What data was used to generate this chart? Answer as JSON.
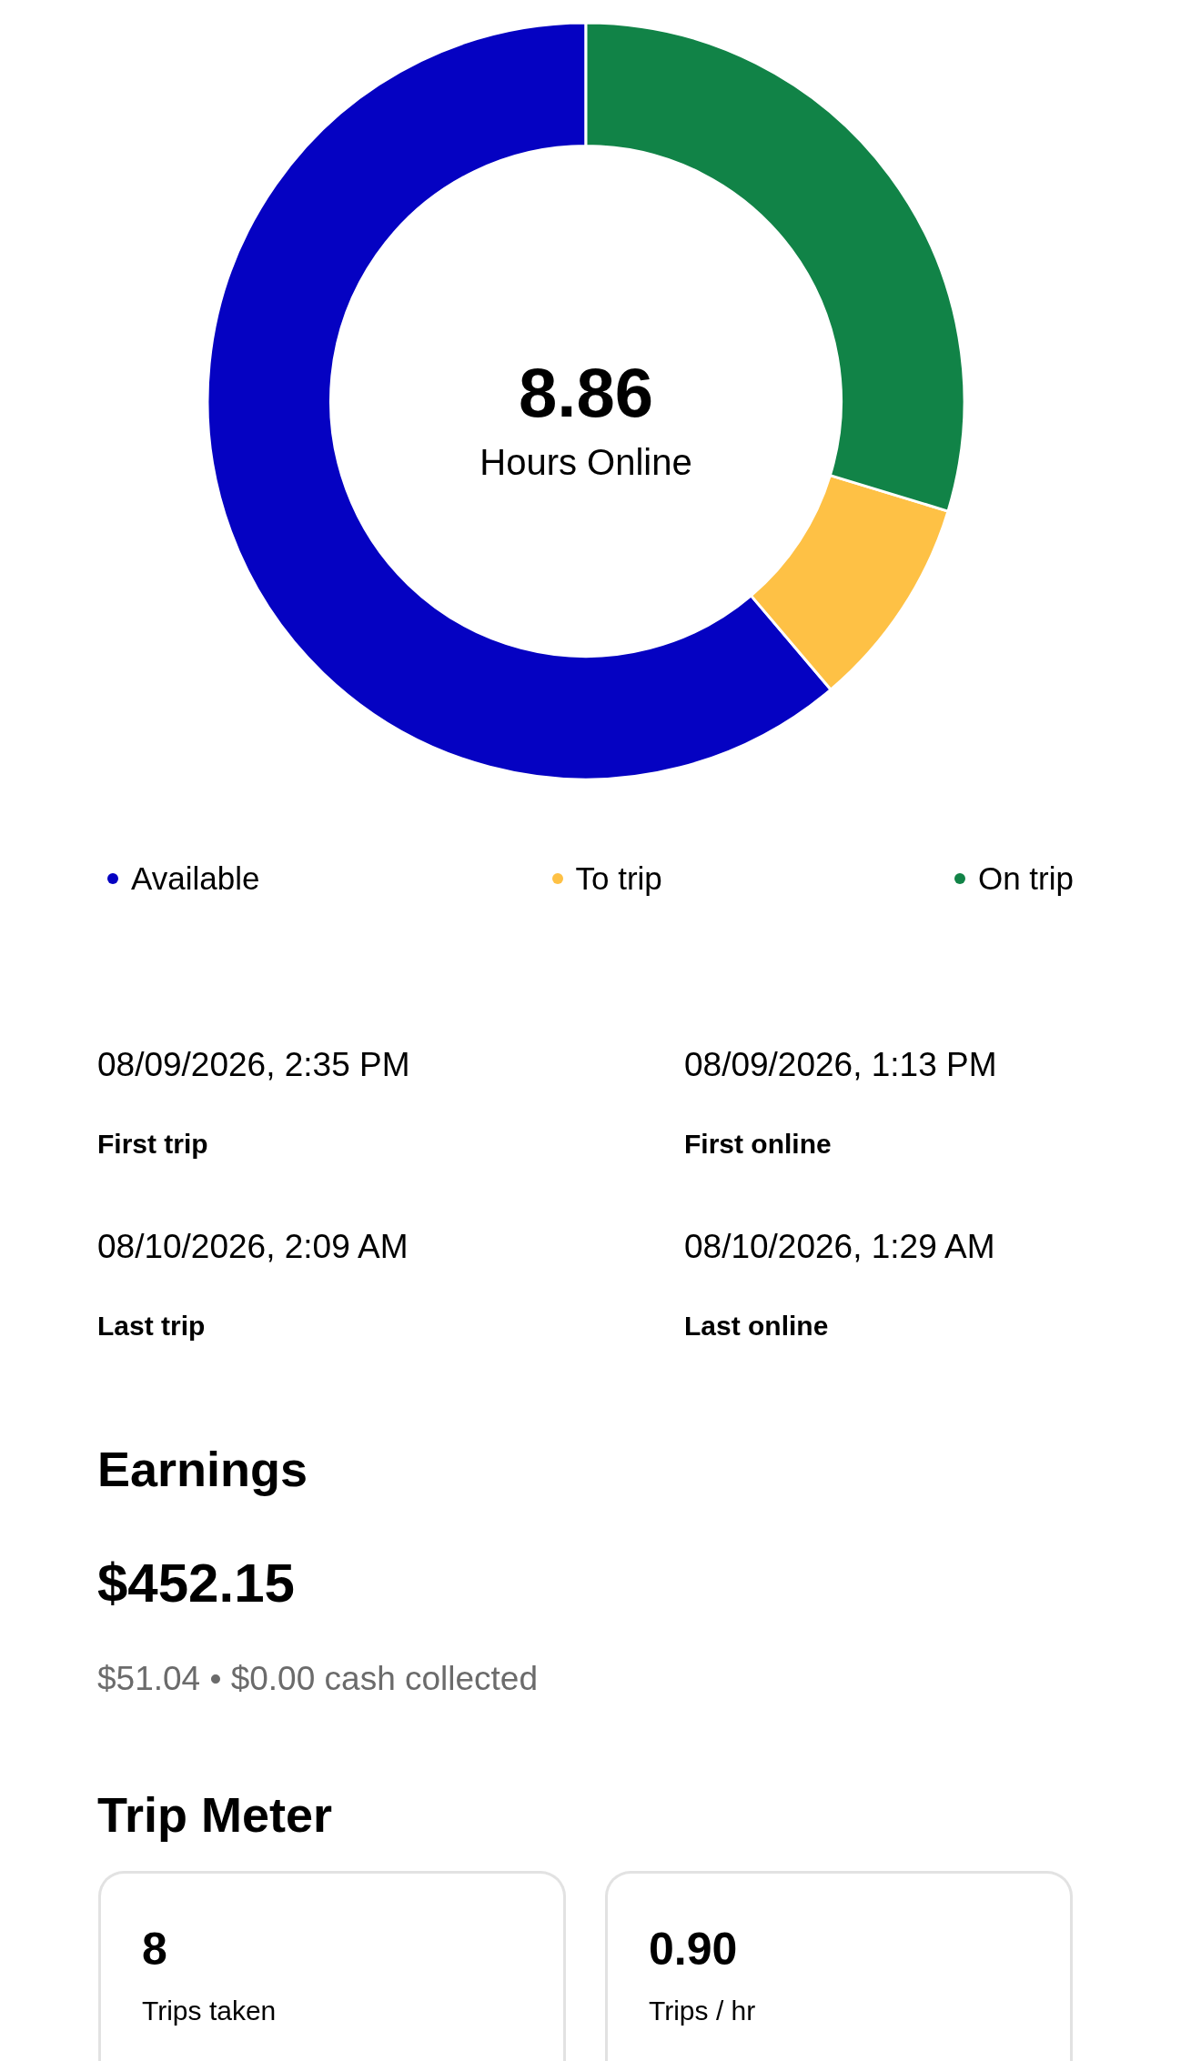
{
  "chart_data": [
    {
      "type": "donut",
      "categories": [
        "Available",
        "To trip",
        "On trip"
      ],
      "values": [
        61.2,
        9.1,
        29.7
      ],
      "colors": [
        "#0502c2",
        "#fec145",
        "#118347"
      ],
      "legend": "bottom",
      "annotations": [
        "8.86",
        "Hours Online"
      ]
    },
    {
      "type": "other",
      "annotations": [
        "08/09/2026, 2:35 PM",
        "First trip",
        "08/09/2026, 1:13 PM",
        "First online",
        "08/10/2026, 2:09 AM",
        "Last trip",
        "08/10/2026, 1:29 AM",
        "Last online"
      ]
    },
    {
      "type": "other",
      "title": "Earnings",
      "annotations": [
        "$452.15",
        "$51.04 • $0.00 cash collected"
      ]
    },
    {
      "type": "other",
      "title": "Trip Meter",
      "annotations": [
        "8",
        "Trips taken",
        "0.90",
        "Trips / hr"
      ]
    }
  ]
}
